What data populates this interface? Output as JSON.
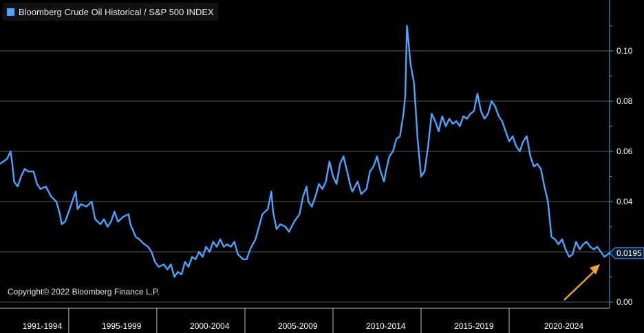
{
  "legend": {
    "label": "Bloomberg Crude Oil Historical / S&P 500 INDEX"
  },
  "copyright": "Copyright© 2022 Bloomberg Finance L.P.",
  "colors": {
    "series": "#4da3ff",
    "arrow": "#f0a040",
    "grid": "#5a5a5a",
    "background": "#000000"
  },
  "chart_data": {
    "type": "line",
    "title": "",
    "xlabel": "",
    "ylabel": "",
    "xlim": [
      1990.6,
      2025.2
    ],
    "ylim": [
      0,
      0.12
    ],
    "y_ticks": [
      0.0,
      0.02,
      0.04,
      0.06,
      0.08,
      0.1
    ],
    "y_tick_labels": [
      "0.00",
      "",
      "0.04",
      "0.06",
      "0.08",
      "0.10"
    ],
    "x_period_labels": [
      "1991-1994",
      "1995-1999",
      "2000-2004",
      "2005-2009",
      "2010-2014",
      "2015-2019",
      "2020-2024"
    ],
    "x_period_centers": [
      1993,
      1997.5,
      2002.5,
      2007.5,
      2012.5,
      2017.5,
      2022.6
    ],
    "x_period_separators": [
      1994.5,
      1999.5,
      2004.5,
      2009.5,
      2014.5,
      2019.5
    ],
    "last_value_label": "0.0195",
    "last_value": 0.0195,
    "legend_position": "top-left",
    "grid": true,
    "series": [
      {
        "name": "Bloomberg Crude Oil Historical / S&P 500 INDEX",
        "points": [
          [
            1990.6,
            0.055
          ],
          [
            1990.8,
            0.056
          ],
          [
            1991.0,
            0.057
          ],
          [
            1991.2,
            0.06
          ],
          [
            1991.3,
            0.055
          ],
          [
            1991.4,
            0.048
          ],
          [
            1991.6,
            0.046
          ],
          [
            1991.8,
            0.05
          ],
          [
            1992.0,
            0.053
          ],
          [
            1992.2,
            0.052
          ],
          [
            1992.5,
            0.052
          ],
          [
            1992.7,
            0.047
          ],
          [
            1992.9,
            0.045
          ],
          [
            1993.2,
            0.046
          ],
          [
            1993.5,
            0.042
          ],
          [
            1993.8,
            0.04
          ],
          [
            1994.0,
            0.035
          ],
          [
            1994.1,
            0.031
          ],
          [
            1994.3,
            0.032
          ],
          [
            1994.5,
            0.036
          ],
          [
            1994.8,
            0.042
          ],
          [
            1994.9,
            0.044
          ],
          [
            1995.0,
            0.037
          ],
          [
            1995.2,
            0.039
          ],
          [
            1995.5,
            0.038
          ],
          [
            1995.8,
            0.04
          ],
          [
            1996.0,
            0.033
          ],
          [
            1996.3,
            0.031
          ],
          [
            1996.5,
            0.033
          ],
          [
            1996.7,
            0.03
          ],
          [
            1996.9,
            0.032
          ],
          [
            1997.1,
            0.036
          ],
          [
            1997.3,
            0.032
          ],
          [
            1997.6,
            0.034
          ],
          [
            1997.9,
            0.035
          ],
          [
            1998.0,
            0.031
          ],
          [
            1998.3,
            0.026
          ],
          [
            1998.5,
            0.025
          ],
          [
            1998.8,
            0.023
          ],
          [
            1999.0,
            0.022
          ],
          [
            1999.2,
            0.02
          ],
          [
            1999.4,
            0.016
          ],
          [
            1999.6,
            0.014
          ],
          [
            1999.9,
            0.015
          ],
          [
            2000.1,
            0.013
          ],
          [
            2000.3,
            0.015
          ],
          [
            2000.5,
            0.01
          ],
          [
            2000.7,
            0.012
          ],
          [
            2000.9,
            0.011
          ],
          [
            2001.1,
            0.016
          ],
          [
            2001.3,
            0.014
          ],
          [
            2001.5,
            0.018
          ],
          [
            2001.7,
            0.017
          ],
          [
            2001.9,
            0.02
          ],
          [
            2002.1,
            0.018
          ],
          [
            2002.3,
            0.022
          ],
          [
            2002.5,
            0.02
          ],
          [
            2002.7,
            0.024
          ],
          [
            2002.9,
            0.022
          ],
          [
            2003.1,
            0.025
          ],
          [
            2003.3,
            0.022
          ],
          [
            2003.5,
            0.023
          ],
          [
            2003.7,
            0.022
          ],
          [
            2003.9,
            0.024
          ],
          [
            2004.1,
            0.019
          ],
          [
            2004.4,
            0.017
          ],
          [
            2004.6,
            0.017
          ],
          [
            2004.8,
            0.021
          ],
          [
            2005.1,
            0.025
          ],
          [
            2005.3,
            0.03
          ],
          [
            2005.5,
            0.035
          ],
          [
            2005.8,
            0.037
          ],
          [
            2006.0,
            0.044
          ],
          [
            2006.1,
            0.036
          ],
          [
            2006.3,
            0.029
          ],
          [
            2006.5,
            0.031
          ],
          [
            2006.8,
            0.03
          ],
          [
            2007.0,
            0.028
          ],
          [
            2007.3,
            0.032
          ],
          [
            2007.6,
            0.035
          ],
          [
            2007.8,
            0.042
          ],
          [
            2008.0,
            0.046
          ],
          [
            2008.1,
            0.04
          ],
          [
            2008.3,
            0.038
          ],
          [
            2008.5,
            0.042
          ],
          [
            2008.7,
            0.047
          ],
          [
            2008.9,
            0.045
          ],
          [
            2009.1,
            0.048
          ],
          [
            2009.3,
            0.056
          ],
          [
            2009.5,
            0.05
          ],
          [
            2009.7,
            0.047
          ],
          [
            2009.9,
            0.055
          ],
          [
            2010.1,
            0.058
          ],
          [
            2010.3,
            0.052
          ],
          [
            2010.5,
            0.046
          ],
          [
            2010.6,
            0.044
          ],
          [
            2010.9,
            0.048
          ],
          [
            2011.1,
            0.043
          ],
          [
            2011.4,
            0.045
          ],
          [
            2011.6,
            0.052
          ],
          [
            2011.8,
            0.054
          ],
          [
            2012.0,
            0.058
          ],
          [
            2012.2,
            0.052
          ],
          [
            2012.4,
            0.048
          ],
          [
            2012.5,
            0.052
          ],
          [
            2012.7,
            0.058
          ],
          [
            2012.9,
            0.06
          ],
          [
            2013.1,
            0.065
          ],
          [
            2013.3,
            0.066
          ],
          [
            2013.5,
            0.075
          ],
          [
            2013.6,
            0.082
          ],
          [
            2013.7,
            0.11
          ],
          [
            2013.9,
            0.095
          ],
          [
            2014.1,
            0.087
          ],
          [
            2014.3,
            0.065
          ],
          [
            2014.5,
            0.05
          ],
          [
            2014.7,
            0.052
          ],
          [
            2014.9,
            0.062
          ],
          [
            2015.1,
            0.075
          ],
          [
            2015.3,
            0.072
          ],
          [
            2015.5,
            0.068
          ],
          [
            2015.7,
            0.074
          ],
          [
            2015.9,
            0.07
          ],
          [
            2016.1,
            0.073
          ],
          [
            2016.3,
            0.071
          ],
          [
            2016.5,
            0.072
          ],
          [
            2016.7,
            0.07
          ],
          [
            2016.9,
            0.074
          ],
          [
            2017.1,
            0.073
          ],
          [
            2017.3,
            0.075
          ],
          [
            2017.5,
            0.076
          ],
          [
            2017.7,
            0.083
          ],
          [
            2017.9,
            0.076
          ],
          [
            2018.1,
            0.073
          ],
          [
            2018.3,
            0.075
          ],
          [
            2018.5,
            0.08
          ],
          [
            2018.7,
            0.078
          ],
          [
            2018.9,
            0.074
          ],
          [
            2019.1,
            0.072
          ],
          [
            2019.3,
            0.068
          ],
          [
            2019.5,
            0.064
          ],
          [
            2019.7,
            0.066
          ],
          [
            2019.9,
            0.062
          ],
          [
            2020.1,
            0.06
          ],
          [
            2020.3,
            0.064
          ],
          [
            2020.5,
            0.066
          ],
          [
            2020.7,
            0.058
          ],
          [
            2020.9,
            0.054
          ],
          [
            2021.1,
            0.055
          ],
          [
            2021.3,
            0.053
          ],
          [
            2021.5,
            0.046
          ],
          [
            2021.7,
            0.04
          ],
          [
            2021.9,
            0.026
          ],
          [
            2022.1,
            0.025
          ],
          [
            2022.3,
            0.023
          ],
          [
            2022.5,
            0.025
          ],
          [
            2022.7,
            0.021
          ],
          [
            2022.9,
            0.018
          ],
          [
            2023.1,
            0.019
          ],
          [
            2023.3,
            0.024
          ],
          [
            2023.5,
            0.021
          ],
          [
            2023.7,
            0.023
          ],
          [
            2023.9,
            0.024
          ],
          [
            2024.1,
            0.022
          ],
          [
            2024.3,
            0.021
          ],
          [
            2024.5,
            0.022
          ],
          [
            2024.7,
            0.02
          ],
          [
            2024.9,
            0.018
          ],
          [
            2025.2,
            0.0195
          ]
        ]
      }
    ]
  }
}
